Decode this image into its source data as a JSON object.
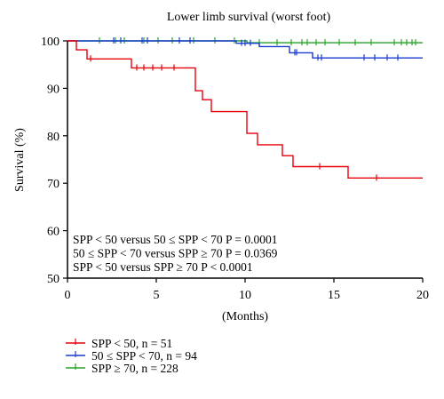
{
  "chart_data": {
    "type": "line",
    "title": "Lower limb survival (worst foot)",
    "xlabel": "(Months)",
    "ylabel": "Survival (%)",
    "xlim": [
      0,
      20
    ],
    "ylim": [
      50,
      100
    ],
    "xticks": [
      0,
      5,
      10,
      15,
      20
    ],
    "yticks": [
      50,
      60,
      70,
      80,
      90,
      100
    ],
    "grid": false,
    "step": true,
    "annotations": [
      "SPP < 50 versus 50 ≤ SPP < 70 P = 0.0001",
      "50 ≤ SPP < 70 versus SPP ≥ 70 P = 0.0369",
      "SPP < 50 versus SPP ≥ 70 P < 0.0001"
    ],
    "legend_position": "bottom-left",
    "series": [
      {
        "name": "SPP < 50, n = 51",
        "color": "#e8000b",
        "points": [
          [
            0,
            100
          ],
          [
            0.5,
            100
          ],
          [
            0.5,
            98.1
          ],
          [
            1.1,
            98.1
          ],
          [
            1.1,
            96.2
          ],
          [
            3.6,
            96.2
          ],
          [
            3.6,
            94.3
          ],
          [
            7.2,
            94.3
          ],
          [
            7.2,
            89.5
          ],
          [
            7.6,
            89.5
          ],
          [
            7.6,
            87.6
          ],
          [
            8.1,
            87.6
          ],
          [
            8.1,
            85.1
          ],
          [
            10.1,
            85.1
          ],
          [
            10.1,
            80.5
          ],
          [
            10.7,
            80.5
          ],
          [
            10.7,
            78.1
          ],
          [
            12.1,
            78.1
          ],
          [
            12.1,
            75.8
          ],
          [
            12.7,
            75.8
          ],
          [
            12.7,
            73.5
          ],
          [
            15.8,
            73.5
          ],
          [
            15.8,
            71.1
          ],
          [
            20,
            71.1
          ]
        ],
        "censor_x": [
          1.3,
          3.9,
          4.3,
          4.8,
          5.3,
          6.0,
          14.2,
          17.4
        ]
      },
      {
        "name": "50 ≤ SPP < 70, n = 94",
        "color": "#1a3bd1",
        "points": [
          [
            0,
            100
          ],
          [
            9.5,
            100
          ],
          [
            9.5,
            99.5
          ],
          [
            10.8,
            99.5
          ],
          [
            10.8,
            98.8
          ],
          [
            12.5,
            98.8
          ],
          [
            12.5,
            97.5
          ],
          [
            13.8,
            97.5
          ],
          [
            13.8,
            96.4
          ],
          [
            20,
            96.4
          ]
        ],
        "censor_x": [
          2.6,
          3.0,
          4.2,
          4.5,
          6.3,
          6.9,
          9.8,
          10.0,
          10.3,
          12.8,
          12.9,
          14.1,
          14.3,
          16.7,
          17.3,
          18.0,
          18.6
        ]
      },
      {
        "name": "SPP ≥ 70, n = 228",
        "color": "#28a428",
        "points": [
          [
            0,
            100
          ],
          [
            10.1,
            100
          ],
          [
            10.1,
            99.6
          ],
          [
            20,
            99.6
          ]
        ],
        "censor_x": [
          1.8,
          2.7,
          3.2,
          4.3,
          5.1,
          5.9,
          7.1,
          8.3,
          9.4,
          10.8,
          11.8,
          12.6,
          13.2,
          13.5,
          14.0,
          14.5,
          15.3,
          16.2,
          17.1,
          18.4,
          18.8,
          19.1,
          19.4,
          19.6
        ]
      }
    ]
  }
}
